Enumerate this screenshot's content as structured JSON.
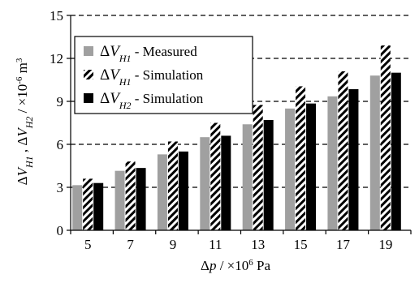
{
  "chart_data": {
    "type": "bar",
    "categories": [
      "5",
      "7",
      "9",
      "11",
      "13",
      "15",
      "17",
      "19"
    ],
    "series": [
      {
        "name": "ΔV_H1 - Measured",
        "symbol": "ΔV",
        "sub": "H1",
        "suffix": " - Measured",
        "pattern": "solid-gray",
        "color": "#a0a0a0",
        "values": [
          3.15,
          4.15,
          5.3,
          6.5,
          7.4,
          8.5,
          9.35,
          10.8
        ]
      },
      {
        "name": "ΔV_H1 - Simulation",
        "symbol": "ΔV",
        "sub": "H1",
        "suffix": " - Simulation",
        "pattern": "diagonal-hatch",
        "color": "#000000",
        "values": [
          3.6,
          4.8,
          6.2,
          7.5,
          8.75,
          10.05,
          11.1,
          12.9
        ]
      },
      {
        "name": "ΔV_H2 - Simulation",
        "symbol": "ΔV",
        "sub": "H2",
        "suffix": " - Simulation",
        "pattern": "solid-black",
        "color": "#000000",
        "values": [
          3.3,
          4.35,
          5.5,
          6.6,
          7.7,
          8.85,
          9.85,
          11.0
        ]
      }
    ],
    "xlabel": "Δp / ×10⁶ Pa",
    "ylabel": "ΔV_H1 , ΔV_H2 / ×10⁻⁶ m³",
    "ylim": [
      0,
      15
    ],
    "yticks": [
      "0",
      "3",
      "6",
      "9",
      "12",
      "15"
    ],
    "grid": "horizontal-dashed",
    "legend": "top-left"
  }
}
